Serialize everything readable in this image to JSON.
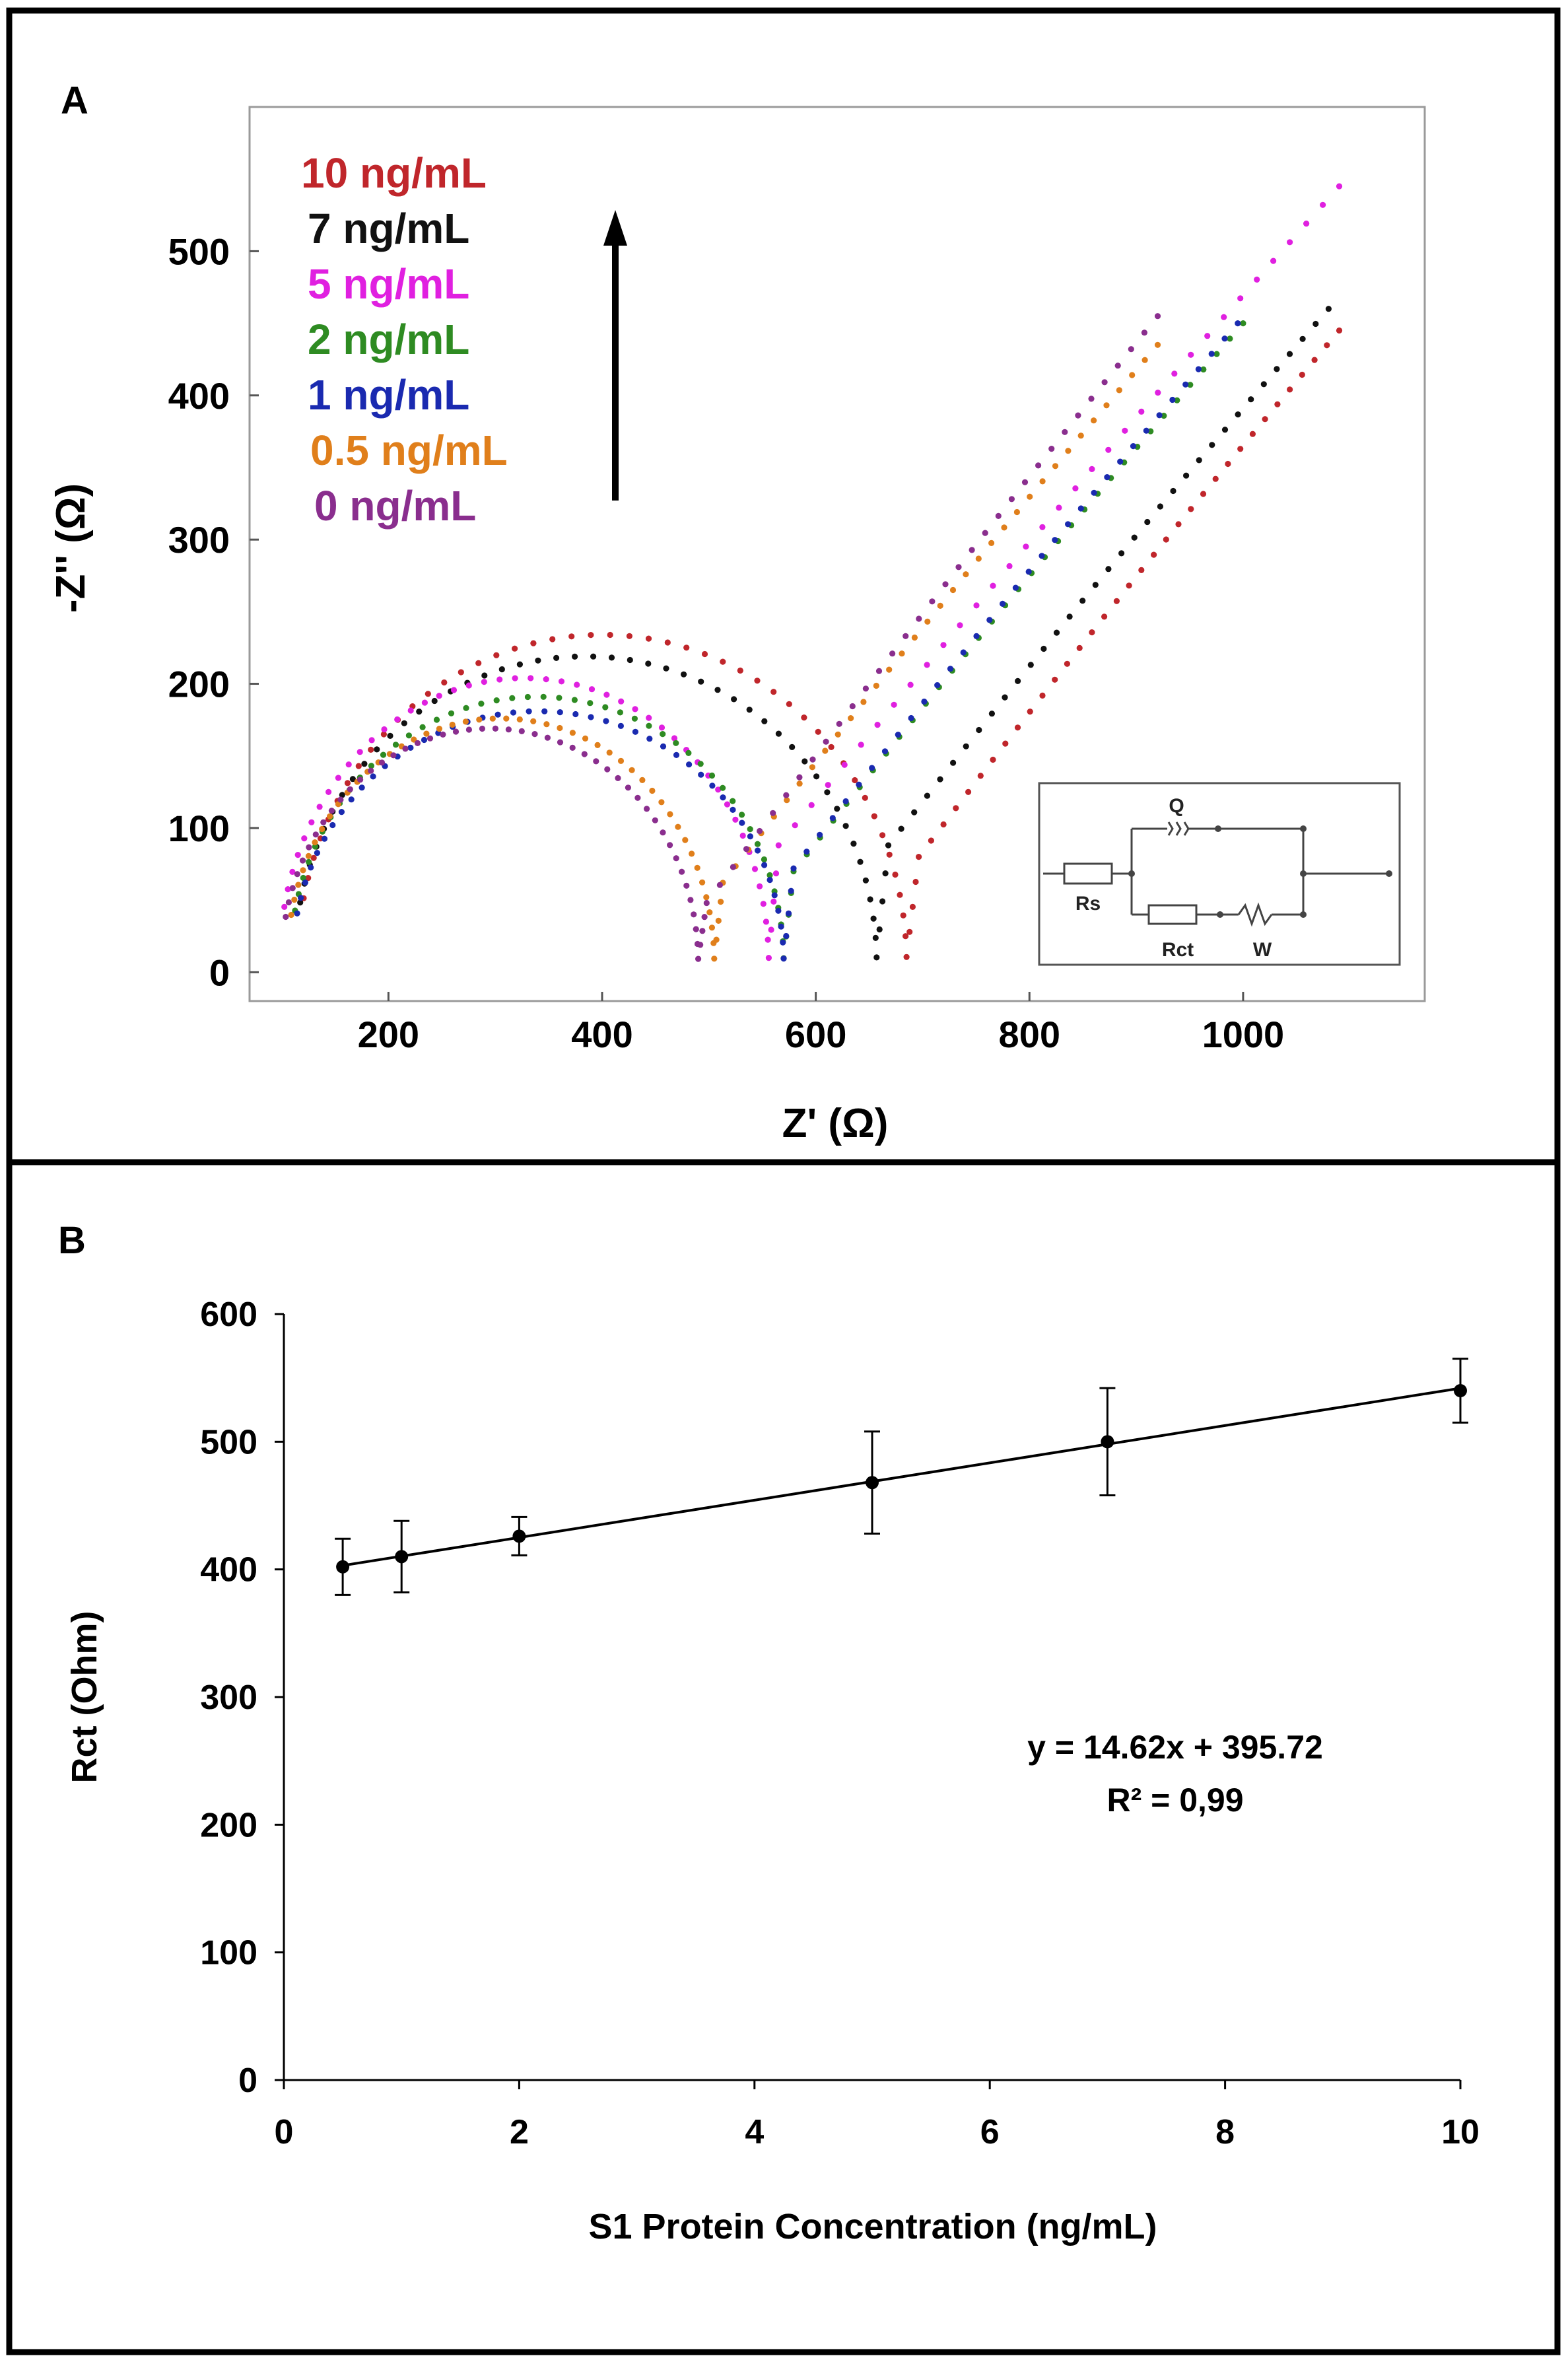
{
  "figure": {
    "panels": [
      {
        "label": "A"
      },
      {
        "label": "B"
      }
    ]
  },
  "circuit": {
    "labels": {
      "q": "Q",
      "rs": "Rs",
      "rct": "Rct",
      "w": "W"
    }
  },
  "chart_data": [
    {
      "id": "A",
      "type": "scatter",
      "title": "",
      "xlabel": "Z' (Ω)",
      "ylabel": "-Z'' (Ω)",
      "xlim": [
        70,
        1170
      ],
      "ylim": [
        -20,
        600
      ],
      "xticks": [
        200,
        400,
        600,
        800,
        1000
      ],
      "yticks": [
        0,
        100,
        200,
        300,
        400,
        500
      ],
      "grid": false,
      "legend_position": "top-left",
      "legend_arrow": "up",
      "series": [
        {
          "name": "10 ng/mL",
          "color": "#c0262b",
          "rs": 115,
          "rct": 570,
          "peak": 228,
          "min_z": 80,
          "z_end": 1090,
          "y_end": 445
        },
        {
          "name": "7 ng/mL",
          "color": "#111111",
          "rs": 112,
          "rct": 545,
          "peak": 213,
          "min_z": 88,
          "z_end": 1080,
          "y_end": 460
        },
        {
          "name": "5 ng/mL",
          "color": "#e020e0",
          "rs": 98,
          "rct": 458,
          "peak": 198,
          "min_z": 88,
          "z_end": 1090,
          "y_end": 545
        },
        {
          "name": "2 ng/mL",
          "color": "#2e8b22",
          "rs": 108,
          "rct": 462,
          "peak": 185,
          "min_z": 70,
          "z_end": 1000,
          "y_end": 450
        },
        {
          "name": "1 ng/mL",
          "color": "#1a2ab0",
          "rs": 110,
          "rct": 460,
          "peak": 175,
          "min_z": 72,
          "z_end": 995,
          "y_end": 450
        },
        {
          "name": "0.5 ng/mL",
          "color": "#e07f1b",
          "rs": 105,
          "rct": 400,
          "peak": 170,
          "min_z": 62,
          "z_end": 920,
          "y_end": 435
        },
        {
          "name": "0 ng/mL",
          "color": "#8a2e8e",
          "rs": 100,
          "rct": 390,
          "peak": 163,
          "min_z": 48,
          "z_end": 920,
          "y_end": 455
        }
      ]
    },
    {
      "id": "B",
      "type": "line",
      "title": "",
      "xlabel": "S1 Protein Concentration (ng/mL)",
      "ylabel": "Rct (Ohm)",
      "xlim": [
        0,
        10
      ],
      "ylim": [
        0,
        600
      ],
      "xticks": [
        0,
        2,
        4,
        6,
        8,
        10
      ],
      "yticks": [
        0,
        100,
        200,
        300,
        400,
        500,
        600
      ],
      "grid": false,
      "x": [
        0.5,
        1,
        2,
        5,
        7,
        10
      ],
      "y": [
        402,
        410,
        426,
        468,
        500,
        540
      ],
      "yerr": [
        22,
        28,
        15,
        40,
        42,
        25
      ],
      "fit": {
        "slope": 14.62,
        "intercept": 395.72
      },
      "annotation": {
        "equation": "y = 14.62x + 395.72",
        "r2": "R² = 0,99"
      }
    }
  ]
}
